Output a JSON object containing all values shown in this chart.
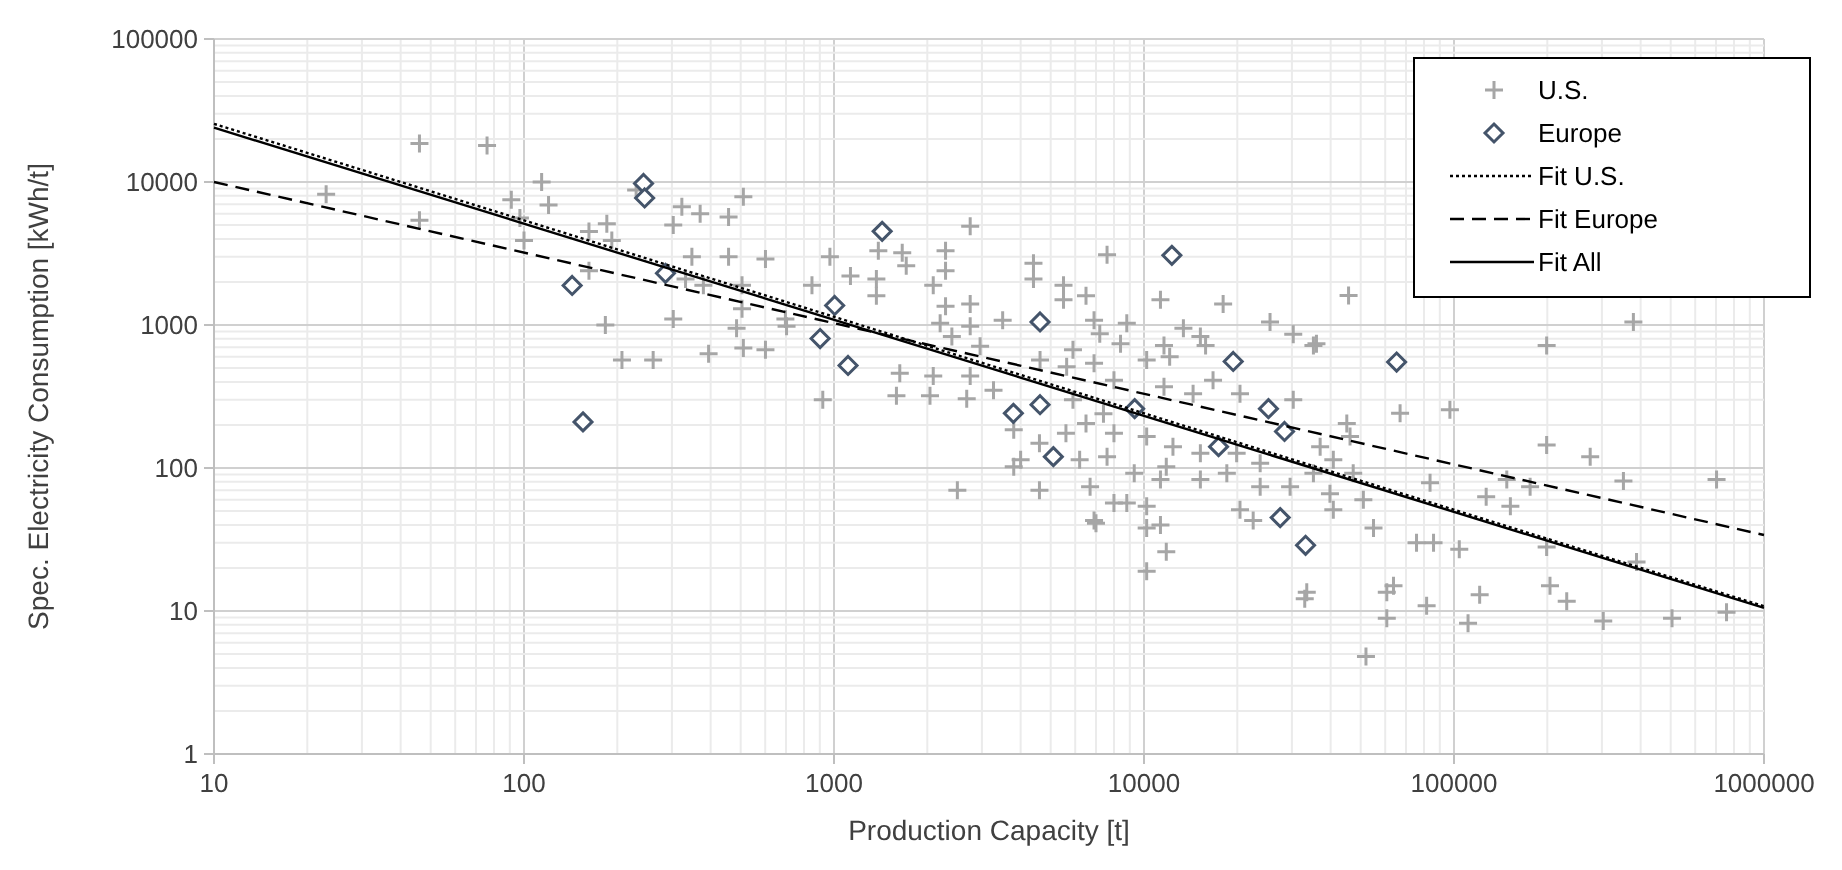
{
  "chart_data": {
    "type": "scatter",
    "xlabel": "Production Capacity [t]",
    "ylabel": "Spec. Electricity Consumption [kWh/t]",
    "log": "xy",
    "grid": true,
    "legend": "top right",
    "xlim": [
      10,
      1000000
    ],
    "xticks": [
      10,
      100,
      1000,
      10000,
      100000,
      1000000
    ],
    "ylim": [
      1,
      100000
    ],
    "yticks": [
      1,
      10,
      100,
      1000,
      10000,
      100000
    ],
    "series": [
      {
        "name": "U.S.",
        "type": "scatter",
        "marker": "cross",
        "color": "#a6a6a6",
        "x": [
          23,
          46,
          76,
          46,
          114,
          91,
          120,
          97,
          100,
          162,
          185,
          192,
          230,
          303,
          323,
          370,
          457,
          510,
          348,
          457,
          601,
          162,
          332,
          379,
          505,
          849,
          697,
          703,
          505,
          485,
          183,
          303,
          207,
          261,
          394,
          510,
          601,
          2750,
          970,
          1390,
          1660,
          2290,
          2290,
          1710,
          1130,
          1370,
          1370,
          2090,
          2750,
          2290,
          4400,
          4400,
          7600,
          5500,
          5500,
          6500,
          11300,
          18000,
          25500,
          30300,
          35200,
          13400,
          15200,
          15800,
          11600,
          8800,
          8400,
          6900,
          7200,
          5900,
          3500,
          2750,
          2200,
          2400,
          2960,
          1630,
          2090,
          2750,
          1590,
          2040,
          2680,
          3270,
          920,
          4620,
          5630,
          6900,
          8000,
          10200,
          12100,
          11600,
          14400,
          16700,
          20400,
          30300,
          5900,
          6500,
          7400,
          8000,
          10200,
          12400,
          15200,
          19900,
          23700,
          3800,
          4000,
          3800,
          4600,
          5600,
          6200,
          7600,
          9300,
          11800,
          15200,
          18500,
          23700,
          29600,
          35200,
          4600,
          2500,
          6700,
          8000,
          8800,
          11300,
          10200,
          20400,
          22500,
          6900,
          7000,
          10200,
          11300,
          11800,
          10200,
          33500,
          36000,
          45700,
          67000,
          97000,
          199000,
          379000,
          199000,
          275000,
          352000,
          703000,
          148000,
          127000,
          152000,
          176000,
          83700,
          51000,
          45100,
          46200,
          37000,
          40800,
          47300,
          39800,
          40800,
          55000,
          75700,
          85900,
          104000,
          199000,
          388000,
          33000,
          63800,
          60700,
          60700,
          81600,
          111000,
          121000,
          204000,
          231000,
          303000,
          505000,
          757000,
          52000
        ],
        "values": [
          8200,
          18600,
          18000,
          5400,
          10000,
          7500,
          6900,
          5600,
          3900,
          4500,
          5100,
          3900,
          8800,
          5000,
          6700,
          6000,
          5700,
          7900,
          3000,
          3000,
          2900,
          2400,
          2100,
          1900,
          1900,
          1900,
          1100,
          980,
          1300,
          950,
          1000,
          1100,
          570,
          570,
          630,
          690,
          670,
          4900,
          3000,
          3300,
          3200,
          3300,
          2400,
          2600,
          2200,
          2100,
          1600,
          1900,
          1400,
          1350,
          2700,
          2100,
          3100,
          1900,
          1500,
          1600,
          1500,
          1400,
          1050,
          860,
          720,
          950,
          830,
          720,
          720,
          1030,
          740,
          1080,
          870,
          670,
          1080,
          980,
          1030,
          830,
          710,
          460,
          440,
          440,
          320,
          320,
          305,
          350,
          300,
          570,
          510,
          540,
          410,
          570,
          600,
          370,
          330,
          410,
          330,
          300,
          300,
          205,
          240,
          175,
          166,
          141,
          127,
          127,
          108,
          185,
          114,
          102,
          149,
          175,
          114,
          120,
          92,
          102,
          83,
          92,
          74,
          74,
          92,
          70,
          70,
          74,
          57,
          57,
          83,
          54,
          51,
          43,
          43,
          41,
          38,
          40,
          26,
          19,
          13.5,
          740,
          1610,
          241,
          255,
          720,
          1050,
          145,
          120,
          81,
          83,
          83,
          63,
          54,
          74,
          79,
          60,
          205,
          166,
          141,
          114,
          92,
          66,
          51,
          38,
          30,
          30,
          27,
          28,
          22,
          12.2,
          15,
          13.5,
          8.9,
          10.9,
          8.2,
          13,
          15,
          11.7,
          8.5,
          8.9,
          9.8,
          4.8
        ]
      },
      {
        "name": "Europe",
        "type": "scatter",
        "marker": "diamond",
        "color": "#44546a",
        "x": [
          143,
          155,
          243,
          245,
          286,
          902,
          1005,
          1110,
          1430,
          3790,
          4620,
          4620,
          5100,
          9330,
          12300,
          17400,
          19400,
          25200,
          28400,
          27500,
          33200,
          65300
        ],
        "values": [
          1890,
          210,
          9770,
          7730,
          2300,
          804,
          1370,
          521,
          4520,
          241,
          277,
          1050,
          120,
          260,
          3070,
          141,
          556,
          260,
          180,
          45,
          28.8,
          551
        ]
      },
      {
        "name": "Fit U.S.",
        "type": "line",
        "line_style": "dotted",
        "color": "#000000",
        "x": [
          10,
          1000000
        ],
        "values": [
          25500,
          10.8
        ]
      },
      {
        "name": "Fit Europe",
        "type": "line",
        "line_style": "dashed",
        "color": "#000000",
        "x": [
          10,
          1000000
        ],
        "values": [
          10000,
          34
        ]
      },
      {
        "name": "Fit All",
        "type": "line",
        "line_style": "solid",
        "color": "#000000",
        "x": [
          10,
          1000000
        ],
        "values": [
          24000,
          10.5
        ]
      }
    ]
  }
}
